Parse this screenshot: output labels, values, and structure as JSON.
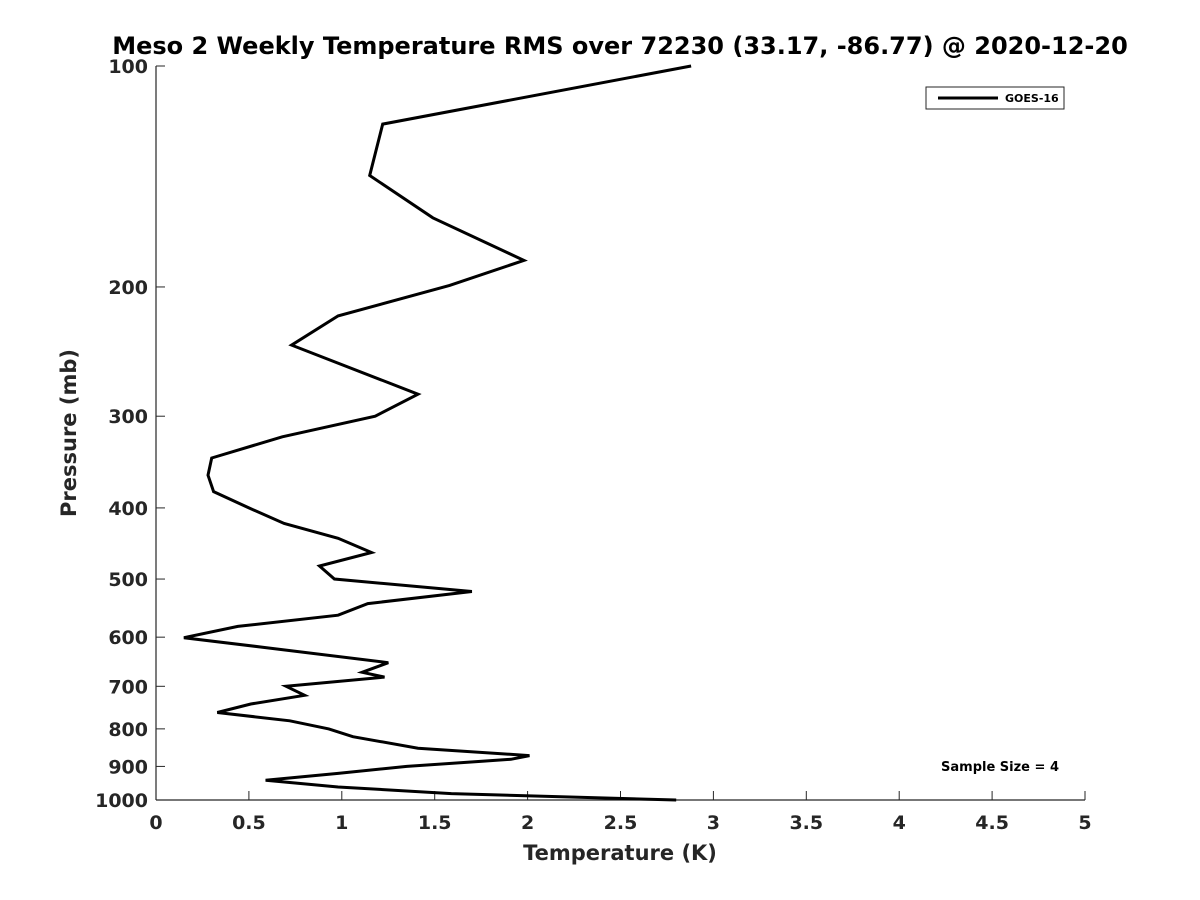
{
  "chart_data": {
    "type": "line",
    "title": "Meso 2 Weekly Temperature RMS over 72230 (33.17, -86.77) @ 2020-12-20",
    "xlabel": "Temperature (K)",
    "ylabel": "Pressure (mb)",
    "xlim": [
      0,
      5
    ],
    "ylim": [
      100,
      1000
    ],
    "yscale": "log",
    "y_reversed": true,
    "x_ticks": [
      "0",
      "0.5",
      "1",
      "1.5",
      "2",
      "2.5",
      "3",
      "3.5",
      "4",
      "4.5",
      "5"
    ],
    "y_ticks": [
      "100",
      "200",
      "300",
      "400",
      "500",
      "600",
      "700",
      "800",
      "900",
      "1000"
    ],
    "grid": false,
    "legend": {
      "position": "top-right",
      "entries": [
        "GOES-16"
      ]
    },
    "annotation": "Sample Size = 4",
    "series": [
      {
        "name": "GOES-16",
        "color": "#000000",
        "points": [
          [
            2.88,
            100
          ],
          [
            1.22,
            120
          ],
          [
            1.15,
            141
          ],
          [
            1.49,
            161
          ],
          [
            1.98,
            184
          ],
          [
            1.58,
            199
          ],
          [
            0.98,
            219
          ],
          [
            0.73,
            240
          ],
          [
            1.41,
            280
          ],
          [
            1.18,
            300
          ],
          [
            0.68,
            320
          ],
          [
            0.3,
            342
          ],
          [
            0.28,
            361
          ],
          [
            0.31,
            380
          ],
          [
            0.5,
            400
          ],
          [
            0.69,
            420
          ],
          [
            0.98,
            440
          ],
          [
            1.16,
            460
          ],
          [
            0.88,
            480
          ],
          [
            0.96,
            500
          ],
          [
            1.7,
            520
          ],
          [
            1.14,
            540
          ],
          [
            0.98,
            560
          ],
          [
            0.44,
            580
          ],
          [
            0.15,
            601
          ],
          [
            0.59,
            620
          ],
          [
            1.25,
            650
          ],
          [
            1.11,
            670
          ],
          [
            1.23,
            680
          ],
          [
            0.7,
            700
          ],
          [
            0.8,
            720
          ],
          [
            0.51,
            740
          ],
          [
            0.33,
            760
          ],
          [
            0.72,
            780
          ],
          [
            0.93,
            800
          ],
          [
            1.06,
            820
          ],
          [
            1.41,
            850
          ],
          [
            2.01,
            870
          ],
          [
            1.91,
            880
          ],
          [
            1.35,
            900
          ],
          [
            0.98,
            920
          ],
          [
            0.59,
            940
          ],
          [
            0.98,
            960
          ],
          [
            1.59,
            980
          ],
          [
            2.8,
            1000
          ]
        ]
      }
    ]
  }
}
